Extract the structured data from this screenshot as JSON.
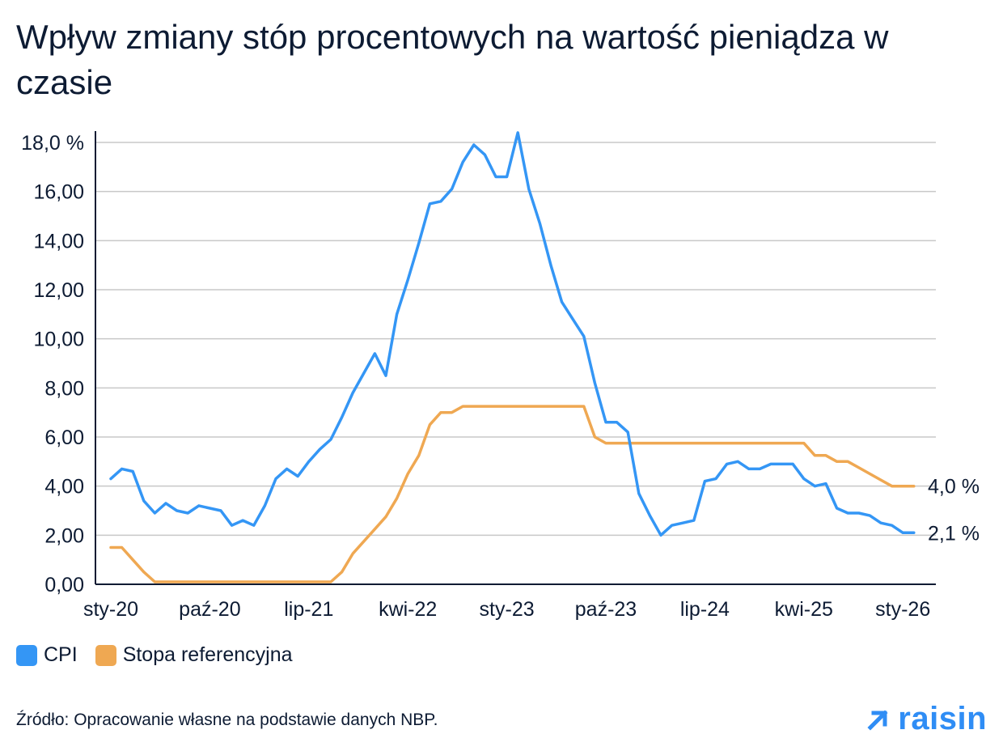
{
  "title": "Wpływ zmiany stóp procentowych na wartość pieniądza w czasie",
  "source": "Źródło: Opracowanie własne na podstawie danych NBP.",
  "logo_text": "raisin",
  "colors": {
    "cpi": "#3496f5",
    "rate": "#efa852",
    "grid": "#c8c8c8",
    "axis": "#0d1b33"
  },
  "chart_data": {
    "type": "line",
    "title": "Wpływ zmiany stóp procentowych na wartość pieniądza w czasie",
    "xlabel": "",
    "ylabel": "",
    "ylim": [
      0,
      18
    ],
    "y_ticks": [
      "0,00",
      "2,00",
      "4,00",
      "6,00",
      "8,00",
      "10,00",
      "12,00",
      "14,00",
      "16,00",
      "18,0 %"
    ],
    "x_ticks": [
      {
        "label": "sty-20",
        "month_index": 0
      },
      {
        "label": "paź-20",
        "month_index": 9
      },
      {
        "label": "lip-21",
        "month_index": 18
      },
      {
        "label": "kwi-22",
        "month_index": 27
      },
      {
        "label": "sty-23",
        "month_index": 36
      },
      {
        "label": "paź-23",
        "month_index": 45
      },
      {
        "label": "lip-24",
        "month_index": 54
      },
      {
        "label": "kwi-25",
        "month_index": 63
      },
      {
        "label": "sty-26",
        "month_index": 72
      }
    ],
    "grid": true,
    "legend_position": "bottom-left",
    "series": [
      {
        "name": "CPI",
        "end_label": "2,1 %",
        "values": [
          4.3,
          4.7,
          4.6,
          3.4,
          2.9,
          3.3,
          3.0,
          2.9,
          3.2,
          3.1,
          3.0,
          2.4,
          2.6,
          2.4,
          3.2,
          4.3,
          4.7,
          4.4,
          5.0,
          5.5,
          5.9,
          6.8,
          7.8,
          8.6,
          9.4,
          8.5,
          11.0,
          12.4,
          13.9,
          15.5,
          15.6,
          16.1,
          17.2,
          17.9,
          17.5,
          16.6,
          16.6,
          18.4,
          16.1,
          14.7,
          13.0,
          11.5,
          10.8,
          10.1,
          8.2,
          6.6,
          6.6,
          6.2,
          3.7,
          2.8,
          2.0,
          2.4,
          2.5,
          2.6,
          4.2,
          4.3,
          4.9,
          5.0,
          4.7,
          4.7,
          4.9,
          4.9,
          4.9,
          4.3,
          4.0,
          4.1,
          3.1,
          2.9,
          2.9,
          2.8,
          2.5,
          2.4,
          2.1,
          2.1
        ]
      },
      {
        "name": "Stopa referencyjna",
        "end_label": "4,0 %",
        "values": [
          1.5,
          1.5,
          1.0,
          0.5,
          0.1,
          0.1,
          0.1,
          0.1,
          0.1,
          0.1,
          0.1,
          0.1,
          0.1,
          0.1,
          0.1,
          0.1,
          0.1,
          0.1,
          0.1,
          0.1,
          0.1,
          0.5,
          1.25,
          1.75,
          2.25,
          2.75,
          3.5,
          4.5,
          5.25,
          6.5,
          7.0,
          7.0,
          7.25,
          7.25,
          7.25,
          7.25,
          7.25,
          7.25,
          7.25,
          7.25,
          7.25,
          7.25,
          7.25,
          7.25,
          6.0,
          5.75,
          5.75,
          5.75,
          5.75,
          5.75,
          5.75,
          5.75,
          5.75,
          5.75,
          5.75,
          5.75,
          5.75,
          5.75,
          5.75,
          5.75,
          5.75,
          5.75,
          5.75,
          5.75,
          5.25,
          5.25,
          5.0,
          5.0,
          4.75,
          4.5,
          4.25,
          4.0,
          4.0,
          4.0
        ]
      }
    ]
  }
}
